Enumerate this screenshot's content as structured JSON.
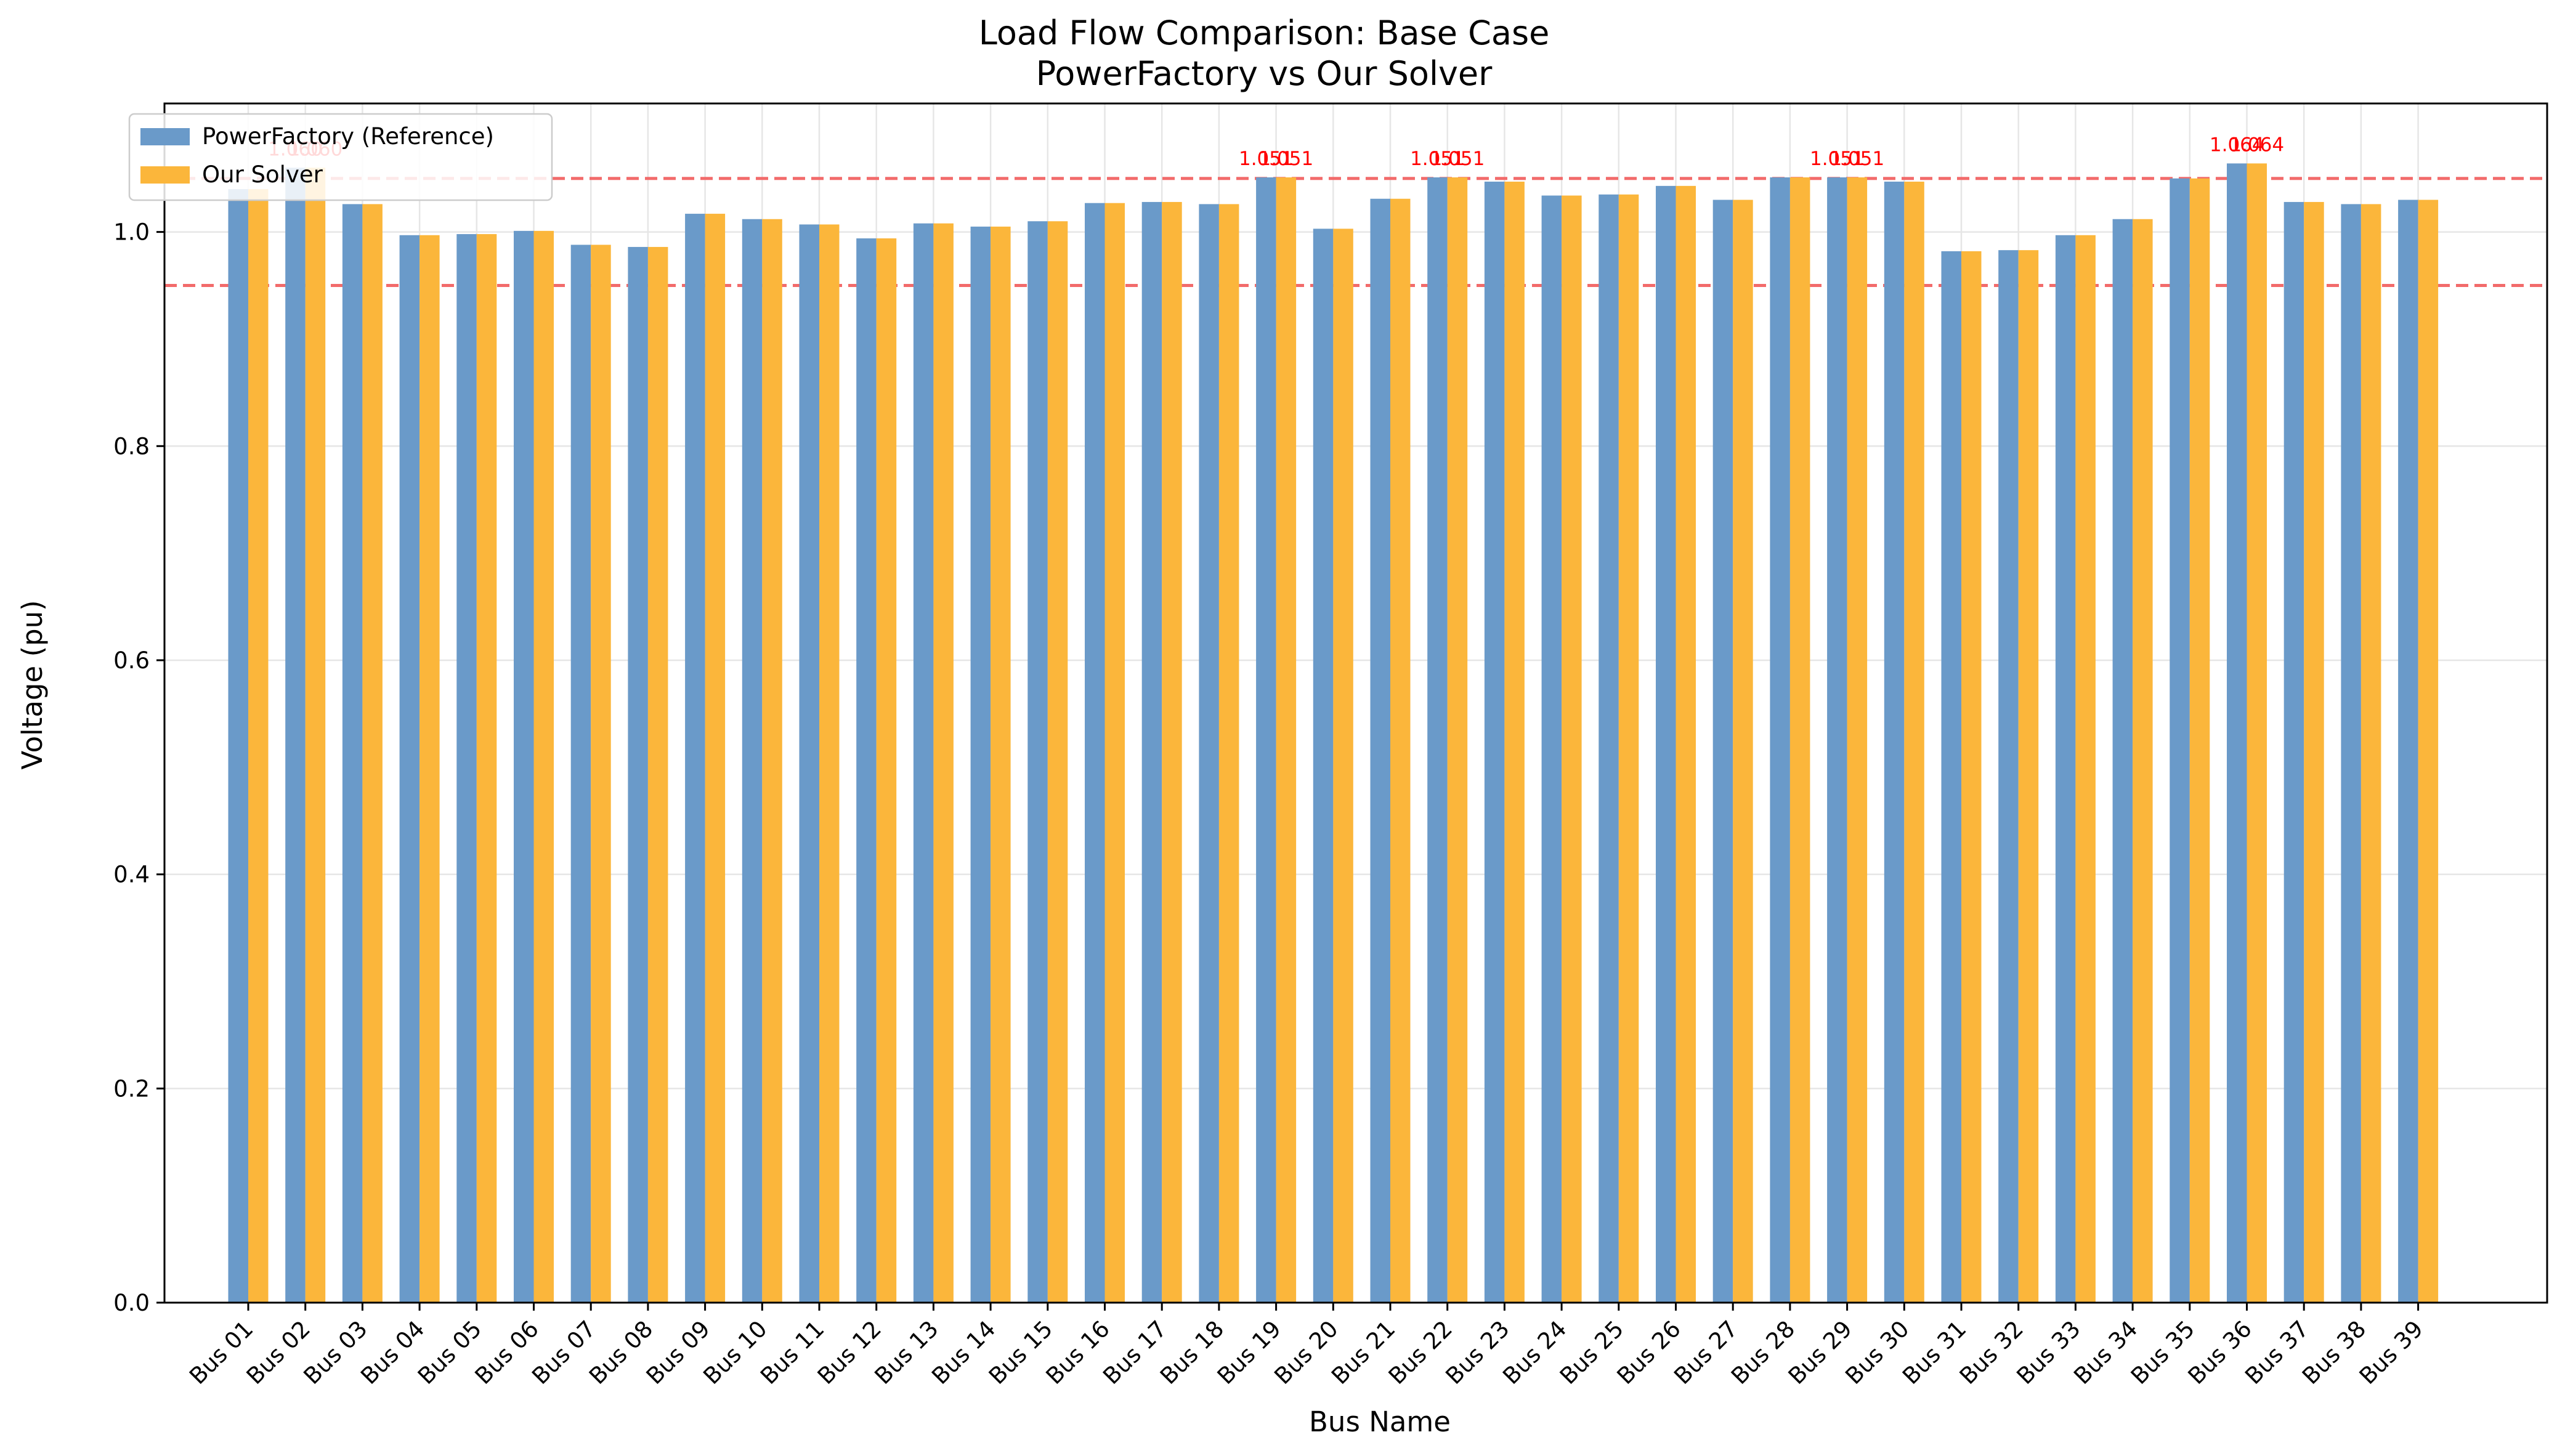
{
  "chart_data": {
    "type": "bar",
    "title_line1": "Load Flow Comparison: Base Case",
    "title_line2": "PowerFactory vs Our Solver",
    "xlabel": "Bus Name",
    "ylabel": "Voltage (pu)",
    "ylim": [
      0,
      1.12
    ],
    "yticks": [
      "0.0",
      "0.2",
      "0.4",
      "0.6",
      "0.8",
      "1.0"
    ],
    "grid": true,
    "legend_position": "top-left",
    "categories": [
      "Bus 01",
      "Bus 02",
      "Bus 03",
      "Bus 04",
      "Bus 05",
      "Bus 06",
      "Bus 07",
      "Bus 08",
      "Bus 09",
      "Bus 10",
      "Bus 11",
      "Bus 12",
      "Bus 13",
      "Bus 14",
      "Bus 15",
      "Bus 16",
      "Bus 17",
      "Bus 18",
      "Bus 19",
      "Bus 20",
      "Bus 21",
      "Bus 22",
      "Bus 23",
      "Bus 24",
      "Bus 25",
      "Bus 26",
      "Bus 27",
      "Bus 28",
      "Bus 29",
      "Bus 30",
      "Bus 31",
      "Bus 32",
      "Bus 33",
      "Bus 34",
      "Bus 35",
      "Bus 36",
      "Bus 37",
      "Bus 38",
      "Bus 39"
    ],
    "series": [
      {
        "name": "PowerFactory (Reference)",
        "color": "#6a9ac9",
        "values": [
          1.04,
          1.06,
          1.026,
          0.997,
          0.998,
          1.001,
          0.988,
          0.986,
          1.017,
          1.012,
          1.007,
          0.994,
          1.008,
          1.005,
          1.01,
          1.027,
          1.028,
          1.026,
          1.051,
          1.003,
          1.031,
          1.051,
          1.047,
          1.034,
          1.035,
          1.043,
          1.03,
          1.051,
          1.051,
          1.047,
          0.982,
          0.983,
          0.997,
          1.012,
          1.05,
          1.064,
          1.028,
          1.026,
          1.03
        ]
      },
      {
        "name": "Our Solver",
        "color": "#fbb63b",
        "values": [
          1.04,
          1.06,
          1.026,
          0.997,
          0.998,
          1.001,
          0.988,
          0.986,
          1.017,
          1.012,
          1.007,
          0.994,
          1.008,
          1.005,
          1.01,
          1.027,
          1.028,
          1.026,
          1.051,
          1.003,
          1.031,
          1.051,
          1.047,
          1.034,
          1.035,
          1.043,
          1.03,
          1.051,
          1.051,
          1.047,
          0.982,
          0.983,
          0.997,
          1.012,
          1.05,
          1.064,
          1.028,
          1.026,
          1.03
        ]
      }
    ],
    "limit_lines": [
      {
        "value": 1.05,
        "color": "#f26b6b"
      },
      {
        "value": 0.95,
        "color": "#f26b6b"
      }
    ],
    "annotations": [
      {
        "bus_index": 1,
        "text": "1.060"
      },
      {
        "bus_index": 18,
        "text": "1.051"
      },
      {
        "bus_index": 21,
        "text": "1.051"
      },
      {
        "bus_index": 28,
        "text": "1.051"
      },
      {
        "bus_index": 35,
        "text": "1.064"
      }
    ],
    "annotation_color": "#ff0000"
  }
}
